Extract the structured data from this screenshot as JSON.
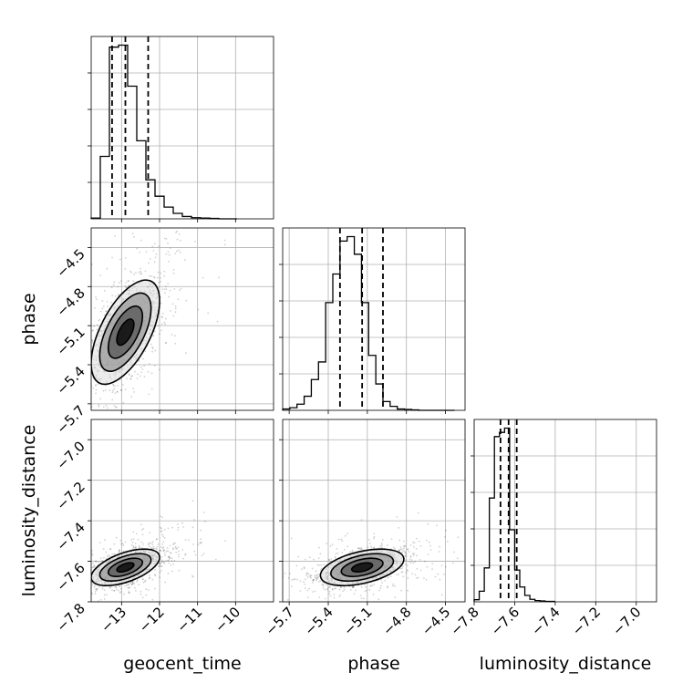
{
  "chart_data": {
    "type": "corner",
    "parameters": [
      "geocent_time",
      "phase",
      "luminosity_distance"
    ],
    "axis_labels": {
      "x": [
        "geocent_time",
        "phase",
        "luminosity_distance"
      ],
      "y": [
        "phase",
        "luminosity_distance"
      ]
    },
    "ranges": {
      "geocent_time": [
        -13.8,
        -9.0
      ],
      "phase": [
        -5.75,
        -4.35
      ],
      "luminosity_distance": [
        -7.8,
        -6.9
      ]
    },
    "ticks": {
      "geocent_time": [
        -13,
        -12,
        -11,
        -10
      ],
      "phase": [
        -5.7,
        -5.4,
        -5.1,
        -4.8,
        -4.5
      ],
      "luminosity_distance_x": [
        -7.8,
        -7.6,
        -7.4,
        -7.2,
        -7.0
      ],
      "luminosity_distance_y": [
        -7.8,
        -7.6,
        -7.4,
        -7.2,
        -7.0
      ]
    },
    "tick_labels": {
      "geocent_time": [
        "−13",
        "−12",
        "−11",
        "−10"
      ],
      "phase": [
        "−5.7",
        "−5.4",
        "−5.1",
        "−4.8",
        "−4.5"
      ],
      "luminosity_distance_x": [
        "−7.8",
        "−7.6",
        "−7.4",
        "−7.2",
        "−7.0"
      ],
      "luminosity_distance_y": [
        "−7.8",
        "−7.6",
        "−7.4",
        "−7.2",
        "−7.0"
      ]
    },
    "grid": true,
    "quantiles": {
      "geocent_time": [
        -13.25,
        -12.9,
        -12.3
      ],
      "phase": [
        -5.31,
        -5.14,
        -4.98
      ],
      "luminosity_distance": [
        -7.67,
        -7.63,
        -7.59
      ]
    },
    "histograms": {
      "geocent_time": {
        "edges": [
          -13.8,
          -13.56,
          -13.32,
          -13.08,
          -12.84,
          -12.6,
          -12.36,
          -12.12,
          -11.88,
          -11.64,
          -11.4,
          -11.16,
          -10.92,
          -10.68,
          -10.44,
          -10.2,
          -9.96
        ],
        "counts": [
          2,
          160,
          440,
          445,
          340,
          200,
          100,
          58,
          30,
          14,
          6,
          3,
          2,
          1,
          0,
          0
        ]
      },
      "phase": {
        "edges": [
          -5.75,
          -5.695,
          -5.64,
          -5.585,
          -5.53,
          -5.475,
          -5.42,
          -5.365,
          -5.31,
          -5.255,
          -5.2,
          -5.145,
          -5.09,
          -5.035,
          -4.98,
          -4.925,
          -4.87,
          -4.815,
          -4.76,
          -4.705,
          -4.65,
          -4.595,
          -4.54,
          -4.485,
          -4.43
        ],
        "counts": [
          3,
          6,
          14,
          32,
          70,
          110,
          245,
          310,
          385,
          395,
          355,
          245,
          125,
          60,
          20,
          9,
          3,
          2,
          1,
          0,
          0,
          0,
          0,
          0
        ]
      },
      "luminosity_distance": {
        "edges": [
          -7.8,
          -7.775,
          -7.75,
          -7.725,
          -7.7,
          -7.675,
          -7.65,
          -7.625,
          -7.6,
          -7.575,
          -7.55,
          -7.525,
          -7.5,
          -7.475,
          -7.45,
          -7.425,
          -7.4
        ],
        "counts": [
          5,
          25,
          80,
          245,
          390,
          400,
          410,
          170,
          75,
          35,
          15,
          6,
          3,
          2,
          1,
          1
        ]
      }
    },
    "pairs": [
      {
        "x": "geocent_time",
        "y": "phase",
        "center": [
          -12.9,
          -5.15
        ],
        "spread": [
          0.45,
          0.2
        ],
        "correlation": 0.6,
        "contour_levels_sigma": [
          0.5,
          1.0,
          1.5,
          2.0
        ]
      },
      {
        "x": "geocent_time",
        "y": "luminosity_distance",
        "center": [
          -12.9,
          -7.63
        ],
        "spread": [
          0.45,
          0.045
        ],
        "correlation": 0.55,
        "contour_levels_sigma": [
          0.5,
          1.0,
          1.5,
          2.0
        ]
      },
      {
        "x": "phase",
        "y": "luminosity_distance",
        "center": [
          -5.14,
          -7.63
        ],
        "spread": [
          0.16,
          0.045
        ],
        "correlation": 0.45,
        "contour_levels_sigma": [
          0.5,
          1.0,
          1.5,
          2.0
        ]
      }
    ]
  }
}
